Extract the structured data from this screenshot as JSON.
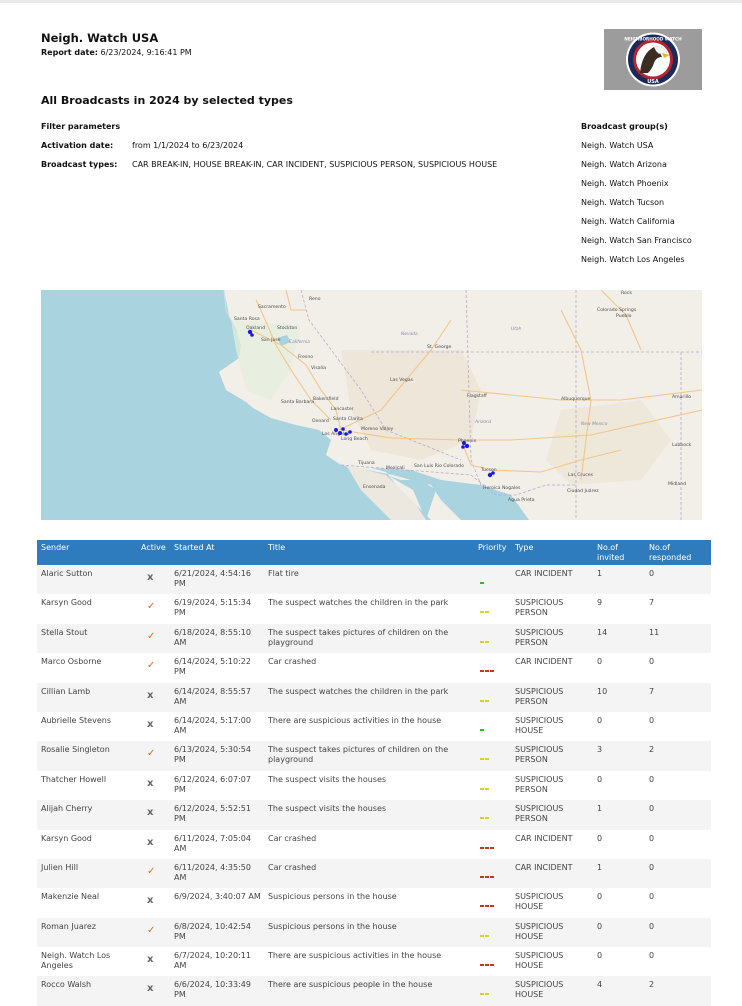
{
  "header": {
    "org_name": "Neigh. Watch USA",
    "report_date_label": "Report date:",
    "report_date_value": "6/23/2024, 9:16:41 PM",
    "logo_text_top": "NEIGHBORHOOD WATCH",
    "logo_text_bottom": "USA"
  },
  "report_title": "All Broadcasts in 2024 by selected types",
  "filters": {
    "heading": "Filter parameters",
    "activation_label": "Activation date:",
    "activation_value": "from 1/1/2024 to 6/23/2024",
    "types_label": "Broadcast types:",
    "types_value": "CAR BREAK-IN, HOUSE BREAK-IN, CAR INCIDENT, SUSPICIOUS PERSON, SUSPICIOUS HOUSE"
  },
  "broadcast_groups": {
    "heading": "Broadcast group(s)",
    "items": [
      "Neigh. Watch USA",
      "Neigh. Watch Arizona",
      "Neigh. Watch Phoenix",
      "Neigh. Watch Tucson",
      "Neigh. Watch California",
      "Neigh. Watch San Francisco",
      "Neigh. Watch Los Angeles"
    ]
  },
  "map": {
    "colors": {
      "ocean": "#a9d3df",
      "land": "#f2efe9",
      "desert": "#ebe3d2",
      "road": "#f3c58a",
      "marker": "#1a1ae6",
      "border": "#b9a9c9"
    },
    "labels": {
      "sacramento": "Sacramento",
      "oakland": "Oakland",
      "stockton": "Stockton",
      "san_jose": "San Jose",
      "fresno": "Fresno",
      "visalia": "Visalia",
      "bakersfield": "Bakersfield",
      "santa_barbara": "Santa Barbara",
      "lancaster": "Lancaster",
      "oxnard": "Oxnard",
      "santa_clarita": "Santa Clarita",
      "los_angeles": "Los Angeles",
      "long_beach": "Long Beach",
      "moreno_valley": "Moreno Valley",
      "tijuana": "Tijuana",
      "mexicali": "Mexicali",
      "san_luis": "San Luis Rio Colorado",
      "ensenada": "Ensenada",
      "las_vegas": "Las Vegas",
      "st_george": "St. George",
      "flagstaff": "Flagstaff",
      "phoenix": "Phoenix",
      "tucson": "Tucson",
      "heroica_nogales": "Heroica Nogales",
      "agua_prieta": "Agua Prieta",
      "albuquerque": "Albuquerque",
      "ciudad_juarez": "Ciudad Juárez",
      "colorado_springs": "Colorado Springs",
      "pueblo": "Pueblo",
      "amarillo": "Amarillo",
      "lubbock": "Lubbock",
      "midland": "Midland",
      "reno": "Reno",
      "chico": "Chico",
      "carson_city": "Carson City",
      "las_cruces": "Las Cruces",
      "arizona": "Arizona",
      "new_mexico": "New Mexico",
      "nevada": "Nevada",
      "california": "California",
      "utah": "Utah"
    }
  },
  "table": {
    "headers": {
      "sender": "Sender",
      "active": "Active",
      "started": "Started At",
      "title": "Title",
      "priority": "Priority",
      "type": "Type",
      "invited": "No.of invited",
      "responded": "No.of responded"
    },
    "rows": [
      {
        "sender": "Alaric Sutton",
        "active": "x",
        "started": "6/21/2024, 4:54:16 PM",
        "title": "Flat tire",
        "priority": "low",
        "type": "CAR INCIDENT",
        "invited": "1",
        "responded": "0"
      },
      {
        "sender": "Karsyn Good",
        "active": "✓",
        "started": "6/19/2024, 5:15:34 PM",
        "title": "The suspect watches the children in the park",
        "priority": "medium",
        "type": "SUSPICIOUS PERSON",
        "invited": "9",
        "responded": "7"
      },
      {
        "sender": "Stella Stout",
        "active": "✓",
        "started": "6/18/2024, 8:55:10 AM",
        "title": "The suspect takes pictures of children on the playground",
        "priority": "medium",
        "type": "SUSPICIOUS PERSON",
        "invited": "14",
        "responded": "11"
      },
      {
        "sender": "Marco Osborne",
        "active": "✓",
        "started": "6/14/2024, 5:10:22 PM",
        "title": "Car crashed",
        "priority": "high",
        "type": "CAR INCIDENT",
        "invited": "0",
        "responded": "0"
      },
      {
        "sender": "Cillian Lamb",
        "active": "x",
        "started": "6/14/2024, 8:55:57 AM",
        "title": "The suspect watches the children in the park",
        "priority": "medium",
        "type": "SUSPICIOUS PERSON",
        "invited": "10",
        "responded": "7"
      },
      {
        "sender": "Aubrielle Stevens",
        "active": "x",
        "started": "6/14/2024, 5:17:00 AM",
        "title": "There are suspicious activities in the house",
        "priority": "low",
        "type": "SUSPICIOUS HOUSE",
        "invited": "0",
        "responded": "0"
      },
      {
        "sender": "Rosalie Singleton",
        "active": "✓",
        "started": "6/13/2024, 5:30:54 PM",
        "title": "The suspect takes pictures of children on the playground",
        "priority": "medium",
        "type": "SUSPICIOUS PERSON",
        "invited": "3",
        "responded": "2"
      },
      {
        "sender": "Thatcher Howell",
        "active": "x",
        "started": "6/12/2024, 6:07:07 PM",
        "title": "The suspect visits the houses",
        "priority": "medium",
        "type": "SUSPICIOUS PERSON",
        "invited": "0",
        "responded": "0"
      },
      {
        "sender": "Alijah Cherry",
        "active": "x",
        "started": "6/12/2024, 5:52:51 PM",
        "title": "The suspect visits the houses",
        "priority": "medium",
        "type": "SUSPICIOUS PERSON",
        "invited": "1",
        "responded": "0"
      },
      {
        "sender": "Karsyn Good",
        "active": "x",
        "started": "6/11/2024, 7:05:04 AM",
        "title": "Car crashed",
        "priority": "high",
        "type": "CAR INCIDENT",
        "invited": "0",
        "responded": "0"
      },
      {
        "sender": "Julien Hill",
        "active": "✓",
        "started": "6/11/2024, 4:35:50 AM",
        "title": "Car crashed",
        "priority": "high",
        "type": "CAR INCIDENT",
        "invited": "1",
        "responded": "0"
      },
      {
        "sender": "Makenzie Neal",
        "active": "x",
        "started": "6/9/2024, 3:40:07 AM",
        "title": "Suspicious persons in the house",
        "priority": "high",
        "type": "SUSPICIOUS HOUSE",
        "invited": "0",
        "responded": "0"
      },
      {
        "sender": "Roman Juarez",
        "active": "✓",
        "started": "6/8/2024, 10:42:54 PM",
        "title": "Suspicious persons in the house",
        "priority": "medium",
        "type": "SUSPICIOUS HOUSE",
        "invited": "0",
        "responded": "0"
      },
      {
        "sender": "Neigh. Watch Los Angeles",
        "active": "x",
        "started": "6/7/2024, 10:20:11 AM",
        "title": "There are suspicious activities in the house",
        "priority": "high",
        "type": "SUSPICIOUS HOUSE",
        "invited": "0",
        "responded": "0"
      },
      {
        "sender": "Rocco Walsh",
        "active": "x",
        "started": "6/6/2024, 10:33:49 PM",
        "title": "There are suspicious people in the house",
        "priority": "medium",
        "type": "SUSPICIOUS HOUSE",
        "invited": "4",
        "responded": "2"
      }
    ],
    "priority_colors": {
      "low": "#22c41e",
      "medium": "#d6d61a",
      "high": "#c0391d"
    }
  }
}
